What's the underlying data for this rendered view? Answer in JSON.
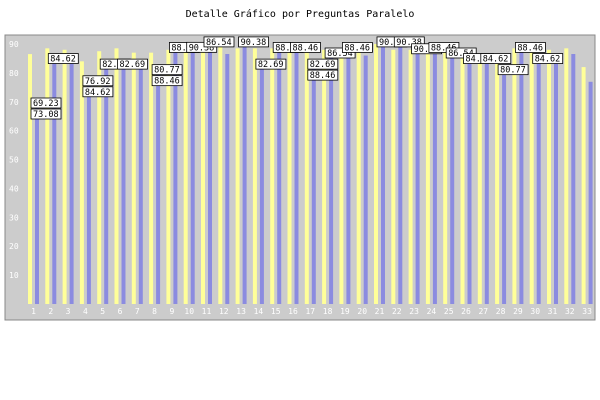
{
  "chart_data": {
    "type": "bar",
    "title": "Detalle Gráfico por Preguntas Paralelo",
    "xlabel": "",
    "ylabel": "",
    "ylim": [
      0,
      90
    ],
    "yticks": [
      10,
      20,
      30,
      40,
      50,
      60,
      70,
      80,
      90
    ],
    "grid": false,
    "categories": [
      "1",
      "2",
      "3",
      "4",
      "5",
      "6",
      "7",
      "8",
      "9",
      "10",
      "11",
      "12",
      "13",
      "14",
      "15",
      "16",
      "17",
      "18",
      "19",
      "20",
      "21",
      "22",
      "23",
      "24",
      "25",
      "26",
      "27",
      "28",
      "29",
      "30",
      "31",
      "32",
      "33"
    ],
    "series": [
      {
        "values": [
          86.5,
          88.5,
          88.0,
          84.0,
          87.5,
          88.5,
          87.0,
          87.0,
          88.0,
          88.5,
          88.5,
          89.5,
          88.5,
          88.5,
          88.5,
          88.5,
          88.0,
          88.0,
          88.5,
          89.0,
          90.0,
          88.0,
          88.0,
          88.0,
          88.5,
          86.5,
          84.5,
          85.0,
          88.5,
          88.5,
          88.0,
          88.5,
          82.0
        ]
      },
      {
        "values": [
          69.23,
          84.62,
          86.0,
          76.92,
          82.69,
          82.69,
          84.0,
          80.77,
          88.46,
          88.5,
          90.38,
          86.54,
          90.38,
          82.69,
          88.46,
          88.46,
          82.69,
          86.54,
          88.46,
          86.0,
          90.38,
          90.38,
          88.0,
          88.46,
          86.54,
          84.62,
          84.62,
          80.77,
          88.46,
          84.62,
          84.62,
          86.54,
          76.92
        ]
      }
    ],
    "colors": [
      "#ffff99",
      "#8b8be0"
    ],
    "background": "#cccccc",
    "data_labels": [
      {
        "bar": 2,
        "text": "69.23"
      },
      {
        "bar": 2,
        "text": "73.08"
      },
      {
        "bar": 4,
        "text": "84.62"
      },
      {
        "bar": 8,
        "text": "76.92"
      },
      {
        "bar": 8,
        "text": "84.62"
      },
      {
        "bar": 10,
        "text": "82.69"
      },
      {
        "bar": 12,
        "text": "82.69"
      },
      {
        "bar": 16,
        "text": "80.77"
      },
      {
        "bar": 16,
        "text": "88.46"
      },
      {
        "bar": 18,
        "text": "88.46"
      },
      {
        "bar": 20,
        "text": "90.38"
      },
      {
        "bar": 22,
        "text": "86.54"
      },
      {
        "bar": 26,
        "text": "90.38"
      },
      {
        "bar": 28,
        "text": "82.69"
      },
      {
        "bar": 30,
        "text": "88.46"
      },
      {
        "bar": 32,
        "text": "88.46"
      },
      {
        "bar": 34,
        "text": "82.69"
      },
      {
        "bar": 34,
        "text": "88.46"
      },
      {
        "bar": 36,
        "text": "86.54"
      },
      {
        "bar": 38,
        "text": "88.46"
      },
      {
        "bar": 42,
        "text": "90.38"
      },
      {
        "bar": 44,
        "text": "90.38"
      },
      {
        "bar": 46,
        "text": "90.38"
      },
      {
        "bar": 48,
        "text": "88.46"
      },
      {
        "bar": 50,
        "text": "86.54"
      },
      {
        "bar": 52,
        "text": "84.62"
      },
      {
        "bar": 54,
        "text": "84.62"
      },
      {
        "bar": 56,
        "text": "80.77"
      },
      {
        "bar": 58,
        "text": "88.46"
      },
      {
        "bar": 60,
        "text": "84.62"
      }
    ]
  }
}
